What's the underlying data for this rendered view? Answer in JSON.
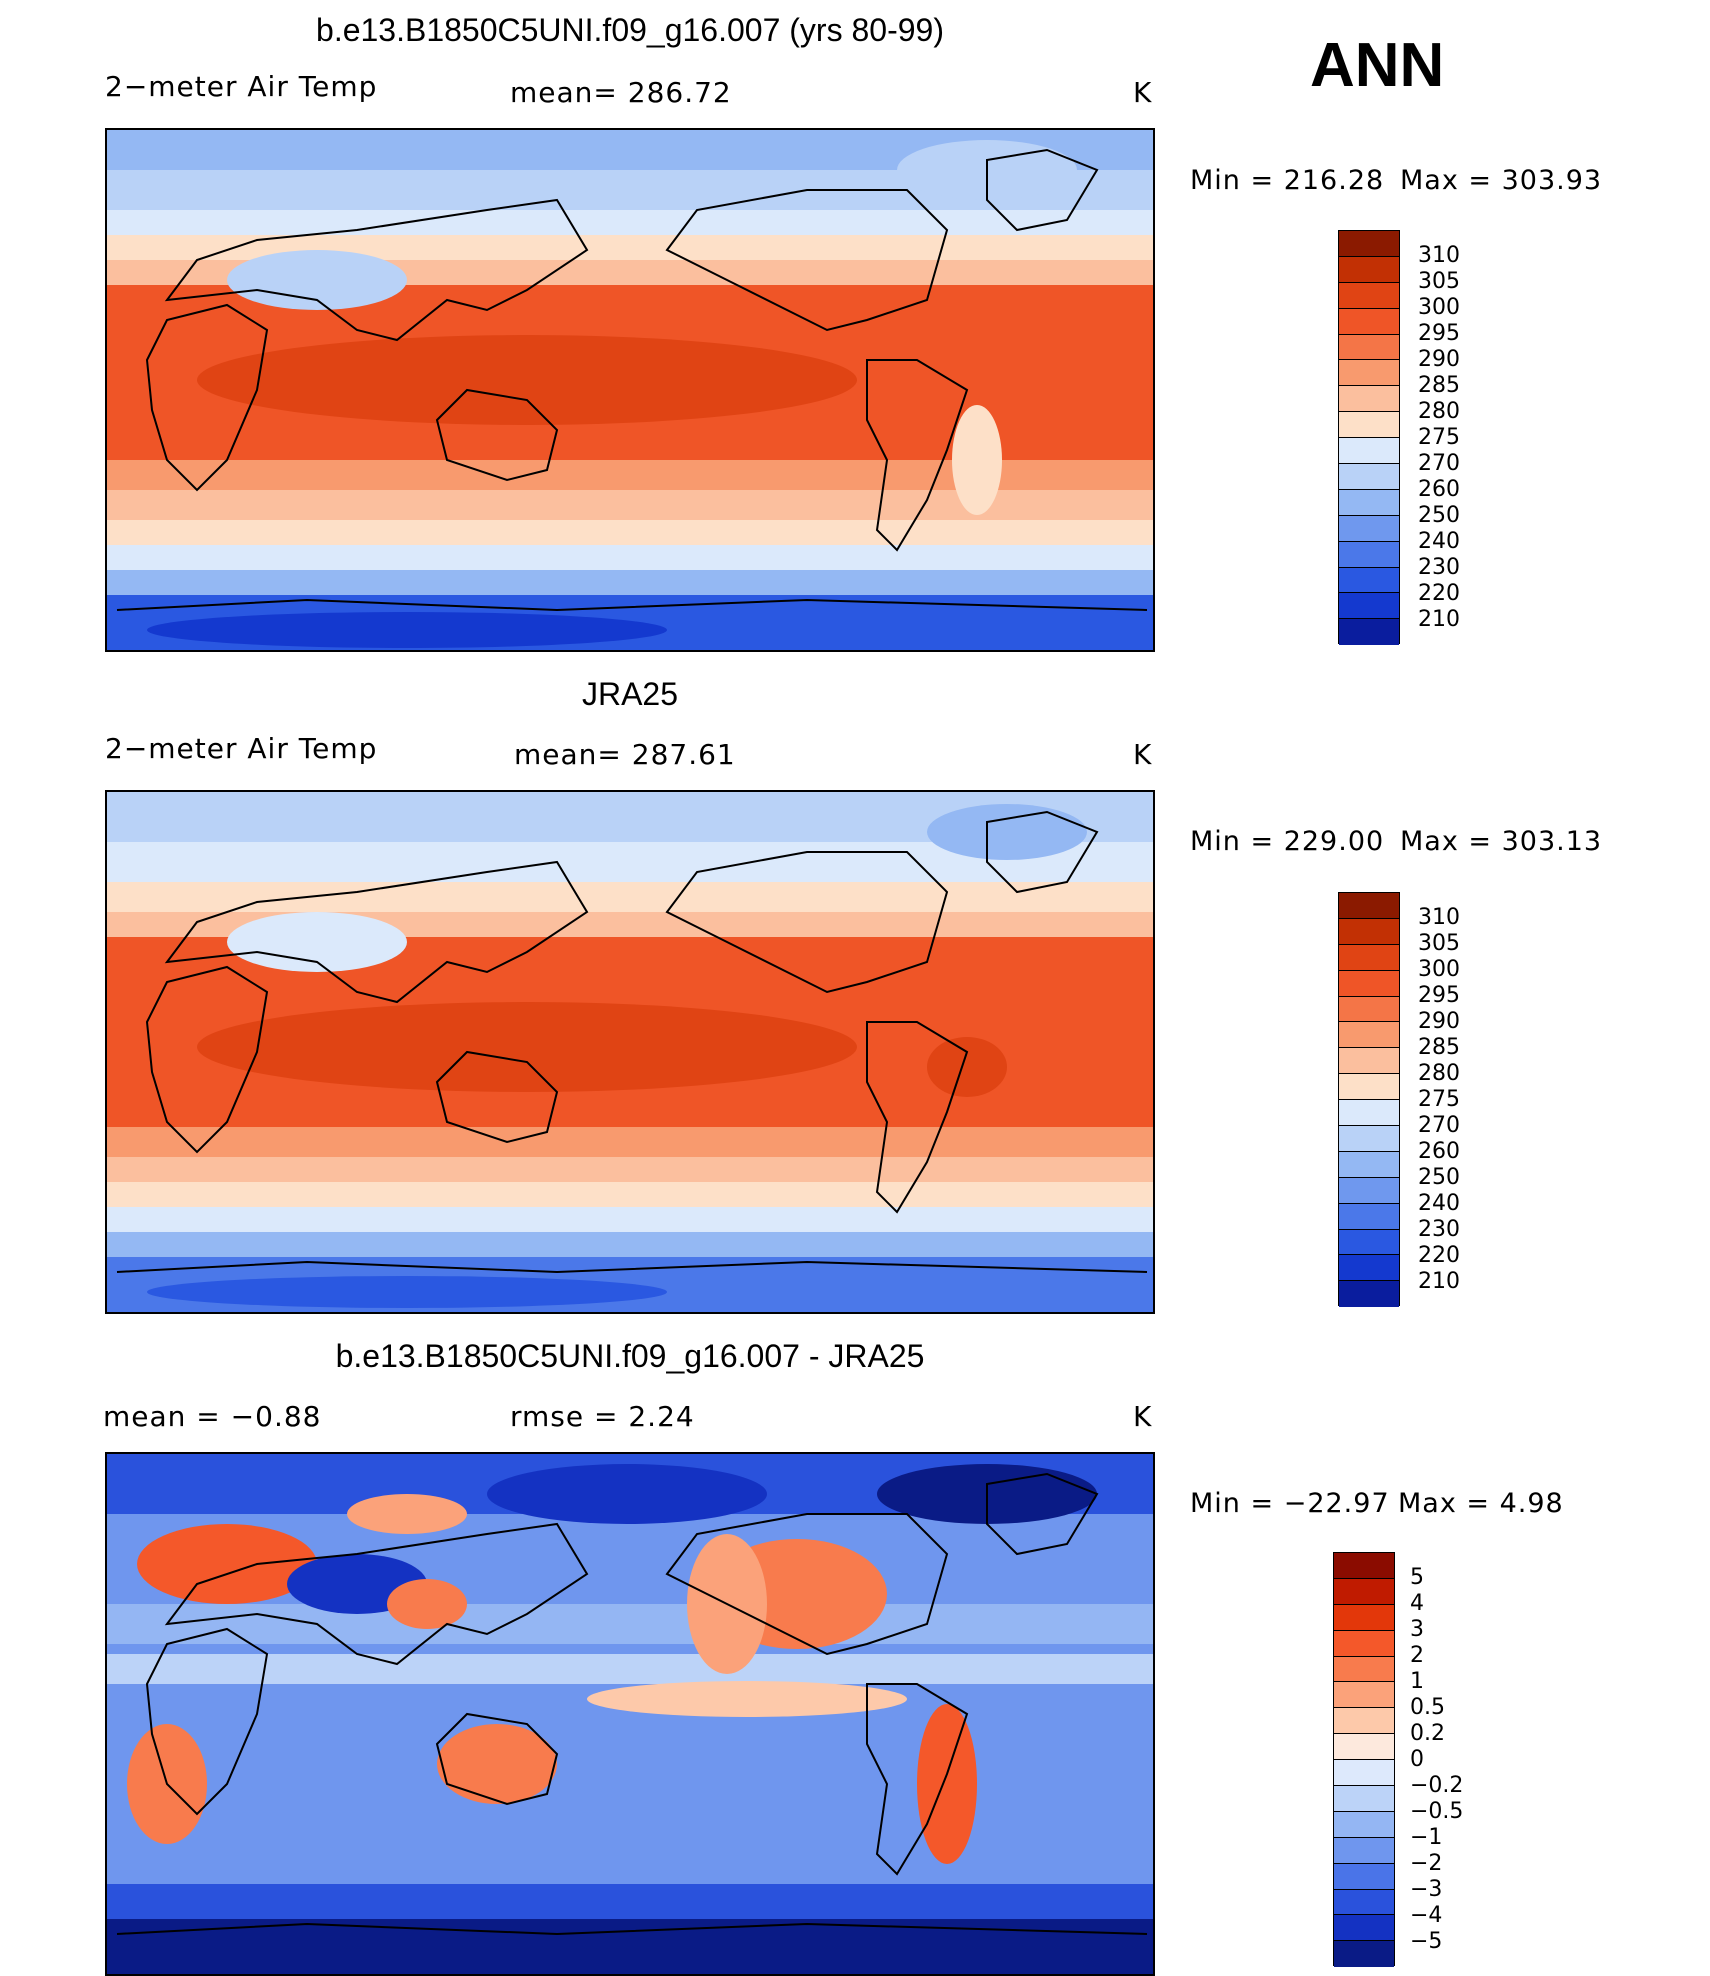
{
  "season": "ANN",
  "colors": {
    "warm": [
      "#fde0c8",
      "#fbbf9e",
      "#f89a6e",
      "#f47547",
      "#ef5527",
      "#e04414",
      "#c23004",
      "#8b1a00"
    ],
    "cool": [
      "#dbe9fb",
      "#b9d2f7",
      "#94b8f3",
      "#6f98ee",
      "#4b78e9",
      "#2a58e1",
      "#1439cf",
      "#0a1d9e"
    ],
    "diff": [
      "#8b0c00",
      "#c01b00",
      "#e3370a",
      "#f4582a",
      "#f87b4d",
      "#fba27a",
      "#fdc9aa",
      "#fde9dd",
      "#dde9fc",
      "#bcd3f8",
      "#94b6f3",
      "#6f96ee",
      "#4a74e8",
      "#2a52dc",
      "#1432c2",
      "#0a1b86"
    ]
  },
  "panels": [
    {
      "title": "b.e13.B1850C5UNI.f09_g16.007 (yrs 80-99)",
      "left_label": "2−meter Air Temp",
      "center_label": "mean=  286.72",
      "units": "K",
      "min_label": "Min  =  216.28",
      "max_label": "Max  =  303.93",
      "colorbar_labels": [
        "310",
        "305",
        "300",
        "295",
        "290",
        "285",
        "280",
        "275",
        "270",
        "260",
        "250",
        "240",
        "230",
        "220",
        "210"
      ]
    },
    {
      "title": "JRA25",
      "left_label": "2−meter Air Temp",
      "center_label": "mean=  287.61",
      "units": "K",
      "min_label": "Min  =  229.00",
      "max_label": "Max  =  303.13",
      "colorbar_labels": [
        "310",
        "305",
        "300",
        "295",
        "290",
        "285",
        "280",
        "275",
        "270",
        "260",
        "250",
        "240",
        "230",
        "220",
        "210"
      ]
    },
    {
      "title": "b.e13.B1850C5UNI.f09_g16.007 - JRA25",
      "left_label": "mean  =    −0.88",
      "center_label": "rmse  =     2.24",
      "units": "K",
      "min_label": "Min  =  −22.97",
      "max_label": "Max  =      4.98",
      "colorbar_labels": [
        "5",
        "4",
        "3",
        "2",
        "1",
        "0.5",
        "0.2",
        "0",
        "−0.2",
        "−0.5",
        "−1",
        "−2",
        "−3",
        "−4",
        "−5"
      ]
    }
  ]
}
